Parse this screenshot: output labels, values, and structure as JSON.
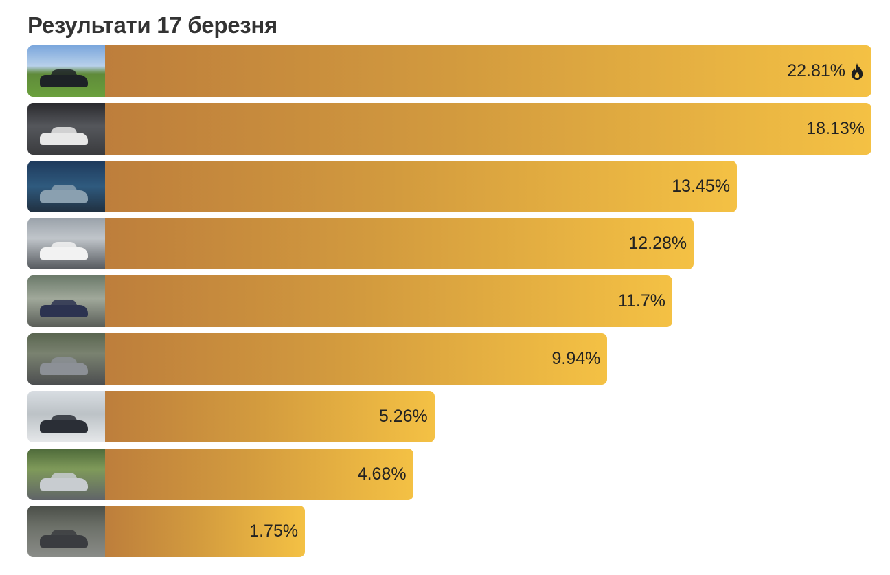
{
  "title": "Результати 17 березня",
  "chart_data": {
    "type": "bar",
    "orientation": "horizontal",
    "title": "Результати 17 березня",
    "unit": "%",
    "categories": [
      "car-1",
      "car-2",
      "car-3",
      "car-4",
      "car-5",
      "car-6",
      "car-7",
      "car-8",
      "car-9"
    ],
    "values": [
      22.81,
      18.13,
      13.45,
      12.28,
      11.7,
      9.94,
      5.26,
      4.68,
      1.75
    ],
    "labels": [
      "22.81%",
      "18.13%",
      "13.45%",
      "12.28%",
      "11.7%",
      "9.94%",
      "5.26%",
      "4.68%",
      "1.75%"
    ],
    "leader_icon": "fire-icon",
    "colors": {
      "bar_start": "#bd7e3c",
      "bar_end": "#f4c144"
    }
  }
}
